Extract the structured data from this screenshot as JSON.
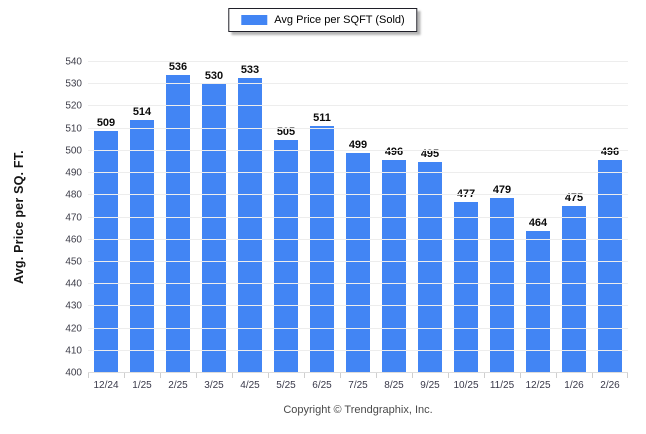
{
  "legend": {
    "label": "Avg Price per SQFT (Sold)"
  },
  "colors": {
    "bar": "#4285f4",
    "gridline": "#ededed",
    "baseline": "#dcdcdc",
    "tick": "#cfcfcf",
    "axis_text": "#3c3c48",
    "value_text": "#0c0c0c"
  },
  "chart_data": {
    "type": "bar",
    "categories": [
      "12/24",
      "1/25",
      "2/25",
      "3/25",
      "4/25",
      "5/25",
      "6/25",
      "7/25",
      "8/25",
      "9/25",
      "10/25",
      "11/25",
      "12/25",
      "1/26",
      "2/26"
    ],
    "values": [
      509,
      514,
      536,
      530,
      533,
      505,
      511,
      499,
      496,
      495,
      477,
      479,
      464,
      475,
      496
    ],
    "series_name": "Avg Price per SQFT (Sold)",
    "title": "",
    "xlabel": "",
    "ylabel": "Avg. Price per SQ. FT.",
    "ylim": [
      400,
      540
    ],
    "ytick_step": 10,
    "grid": true,
    "legend_position": "top-center",
    "value_labels": true
  },
  "footer": {
    "copyright": "Copyright © Trendgraphix, Inc."
  }
}
